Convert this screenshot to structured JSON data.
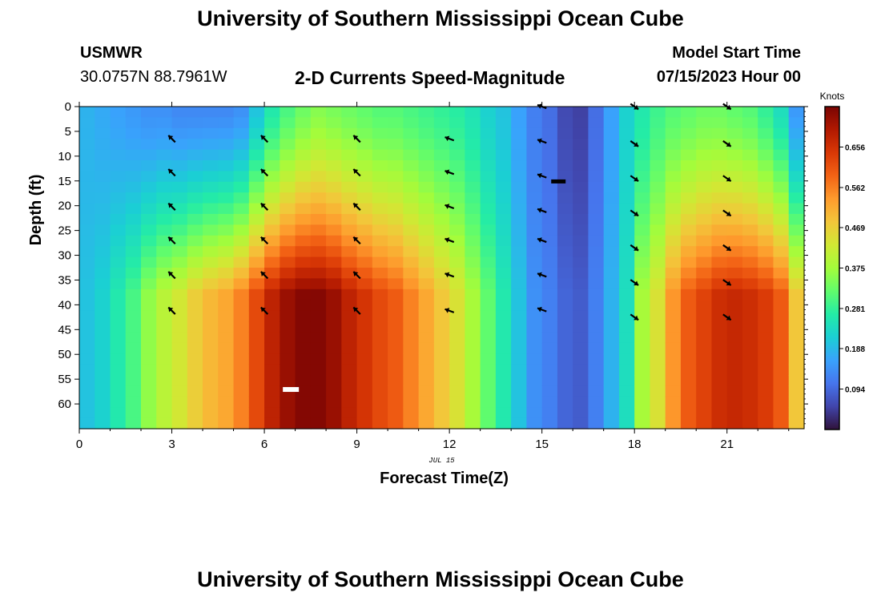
{
  "header": {
    "title": "University of Southern Mississippi Ocean Cube",
    "station": "USMWR",
    "coordinates": "30.0757N  88.7961W",
    "subtitle": "2-D Currents Speed-Magnitude",
    "model_start_label": "Model Start Time",
    "model_start_value": "07/15/2023 Hour 00"
  },
  "footer": {
    "title": "University of Southern Mississippi Ocean Cube"
  },
  "colors": {
    "palette": [
      "#30123b",
      "#4145ab",
      "#4675ed",
      "#39a2fc",
      "#1bcfd4",
      "#24eca6",
      "#61fc6c",
      "#a4fc3b",
      "#d1e834",
      "#f3c63a",
      "#fe9b2d",
      "#f36315",
      "#d93806",
      "#b11901",
      "#7a0403"
    ]
  },
  "chart_data": {
    "type": "heatmap",
    "xlabel": "Forecast Time(Z)",
    "ylabel": "Depth (ft)",
    "date_label": "JUL 15",
    "colorbar_label": "Knots",
    "colorbar_ticks": [
      "0.656",
      "0.562",
      "0.469",
      "0.375",
      "0.281",
      "0.188",
      "0.094"
    ],
    "colorbar_range": [
      0.0,
      0.75
    ],
    "x_ticks": [
      "0",
      "3",
      "6",
      "9",
      "12",
      "15",
      "18",
      "21"
    ],
    "y_ticks": [
      "0",
      "5",
      "10",
      "15",
      "20",
      "25",
      "30",
      "35",
      "40",
      "45",
      "50",
      "55",
      "60"
    ],
    "xlim": [
      0,
      23.5
    ],
    "ylim": [
      0,
      65
    ],
    "x": [
      0,
      0.5,
      1,
      1.5,
      2,
      2.5,
      3,
      3.5,
      4,
      4.5,
      5,
      5.5,
      6,
      6.5,
      7,
      7.5,
      8,
      8.5,
      9,
      9.5,
      10,
      10.5,
      11,
      11.5,
      12,
      12.5,
      13,
      13.5,
      14,
      14.5,
      15,
      15.5,
      16,
      16.5,
      17,
      17.5,
      18,
      18.5,
      19,
      19.5,
      20,
      20.5,
      21,
      21.5,
      22,
      22.5,
      23
    ],
    "surface_speed_knots": [
      0.18,
      0.17,
      0.16,
      0.15,
      0.14,
      0.14,
      0.13,
      0.13,
      0.13,
      0.13,
      0.14,
      0.2,
      0.26,
      0.3,
      0.33,
      0.35,
      0.34,
      0.33,
      0.32,
      0.31,
      0.31,
      0.3,
      0.29,
      0.28,
      0.27,
      0.25,
      0.22,
      0.2,
      0.16,
      0.12,
      0.1,
      0.06,
      0.05,
      0.1,
      0.16,
      0.22,
      0.26,
      0.29,
      0.31,
      0.32,
      0.33,
      0.33,
      0.32,
      0.31,
      0.28,
      0.24,
      0.15
    ],
    "deep_speed_knots": [
      0.2,
      0.22,
      0.26,
      0.3,
      0.36,
      0.4,
      0.43,
      0.47,
      0.5,
      0.52,
      0.56,
      0.62,
      0.68,
      0.72,
      0.74,
      0.74,
      0.72,
      0.68,
      0.65,
      0.62,
      0.6,
      0.56,
      0.52,
      0.48,
      0.44,
      0.38,
      0.32,
      0.26,
      0.2,
      0.14,
      0.12,
      0.09,
      0.08,
      0.12,
      0.18,
      0.24,
      0.38,
      0.44,
      0.54,
      0.6,
      0.63,
      0.66,
      0.67,
      0.66,
      0.64,
      0.6,
      0.48
    ],
    "arrows": [
      {
        "time": 3,
        "depths": [
          6.5,
          13.3,
          20.2,
          27,
          34,
          41.2
        ],
        "direction": "northwest"
      },
      {
        "time": 6,
        "depths": [
          6.5,
          13.3,
          20.2,
          27,
          34,
          41.2
        ],
        "direction": "northwest"
      },
      {
        "time": 9,
        "depths": [
          6.5,
          13.3,
          20.2,
          27,
          34,
          41.2
        ],
        "direction": "northwest"
      },
      {
        "time": 12,
        "depths": [
          6.5,
          13.3,
          20.2,
          27,
          34,
          41.2
        ],
        "direction": "west-northwest"
      },
      {
        "time": 15,
        "depths": [
          0,
          7,
          14,
          21,
          27,
          34,
          41
        ],
        "direction": "west-northwest"
      },
      {
        "time": 18,
        "depths": [
          0,
          7.5,
          14.5,
          21.5,
          28.5,
          35.5,
          42.5
        ],
        "direction": "southeast"
      },
      {
        "time": 21,
        "depths": [
          0,
          7.5,
          14.5,
          21.5,
          28.5,
          35.5,
          42.5
        ],
        "direction": "southeast"
      }
    ]
  }
}
